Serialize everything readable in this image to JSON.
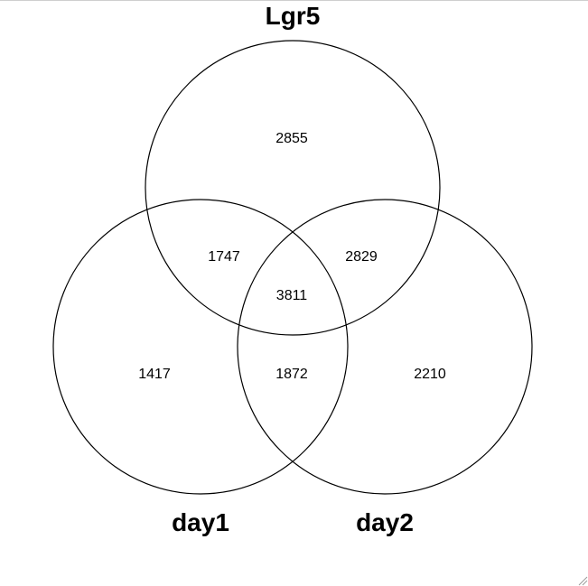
{
  "venn": {
    "sets": {
      "top": "Lgr5",
      "left": "day1",
      "right": "day2"
    },
    "regions": {
      "lgr5_only": "2855",
      "lgr5_day1": "1747",
      "lgr5_day2": "2829",
      "all_three": "3811",
      "day1_only": "1417",
      "day1_day2": "1872",
      "day2_only": "2210"
    }
  },
  "colors": {
    "circle_stroke": "#000000",
    "background": "#ffffff"
  },
  "icons": {
    "resize_grip": "resize-grip-icon"
  }
}
